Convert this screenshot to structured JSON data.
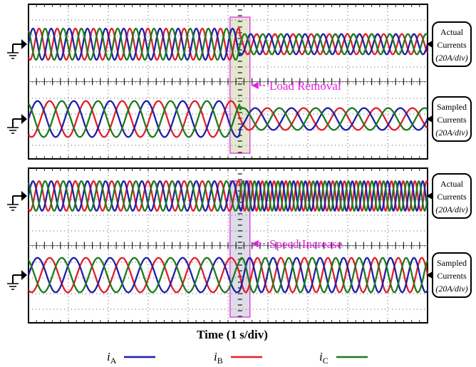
{
  "chart_data": [
    {
      "type": "line",
      "panel": "upper",
      "title": "",
      "xlabel": "Time (1 s/div)",
      "x_unit": "s/div",
      "x_divisions": 10,
      "event": {
        "label": "Load Removal",
        "at_div": 5.3
      },
      "traces": [
        {
          "label_lines": [
            "Actual",
            "Currents",
            "(20A/div)"
          ],
          "scale_A_per_div": 20,
          "amplitude_div": [
            1.0,
            0.65
          ],
          "cycles_per_div": [
            2.2,
            2.2
          ]
        },
        {
          "label_lines": [
            "Sampled",
            "Currents",
            "(20A/div)"
          ],
          "scale_A_per_div": 20,
          "amplitude_div": [
            1.15,
            0.7
          ],
          "cycles_per_div": [
            1.1,
            1.1
          ]
        }
      ],
      "series": [
        {
          "name": "iA",
          "color": "#1f1fa8",
          "phase_deg": 0
        },
        {
          "name": "iB",
          "color": "#e0202a",
          "phase_deg": -120
        },
        {
          "name": "iC",
          "color": "#1e7a1e",
          "phase_deg": 120
        }
      ]
    },
    {
      "type": "line",
      "panel": "lower",
      "title": "",
      "xlabel": "Time (1 s/div)",
      "x_unit": "s/div",
      "x_divisions": 10,
      "event": {
        "label": "Speed Increase",
        "at_div": 5.3
      },
      "traces": [
        {
          "label_lines": [
            "Actual",
            "Currents",
            "(20A/div)"
          ],
          "scale_A_per_div": 20,
          "amplitude_div": [
            0.95,
            0.95
          ],
          "cycles_per_div": [
            2.2,
            3.4
          ]
        },
        {
          "label_lines": [
            "Sampled",
            "Currents",
            "(20A/div)"
          ],
          "scale_A_per_div": 20,
          "amplitude_div": [
            1.1,
            1.1
          ],
          "cycles_per_div": [
            1.1,
            1.7
          ]
        }
      ],
      "series": [
        {
          "name": "iA",
          "color": "#1f1fa8",
          "phase_deg": 0
        },
        {
          "name": "iB",
          "color": "#e0202a",
          "phase_deg": -120
        },
        {
          "name": "iC",
          "color": "#1e7a1e",
          "phase_deg": 120
        }
      ]
    }
  ],
  "legend": [
    {
      "symbol": "i",
      "sub": "A",
      "color": "#1f1fa8"
    },
    {
      "symbol": "i",
      "sub": "B",
      "color": "#e0202a"
    },
    {
      "symbol": "i",
      "sub": "C",
      "color": "#1e7a1e"
    }
  ],
  "colors": {
    "annotation": "#e61ee6",
    "event_band_upper": "#e3e8cf",
    "event_band_lower": "#dcdde6"
  }
}
